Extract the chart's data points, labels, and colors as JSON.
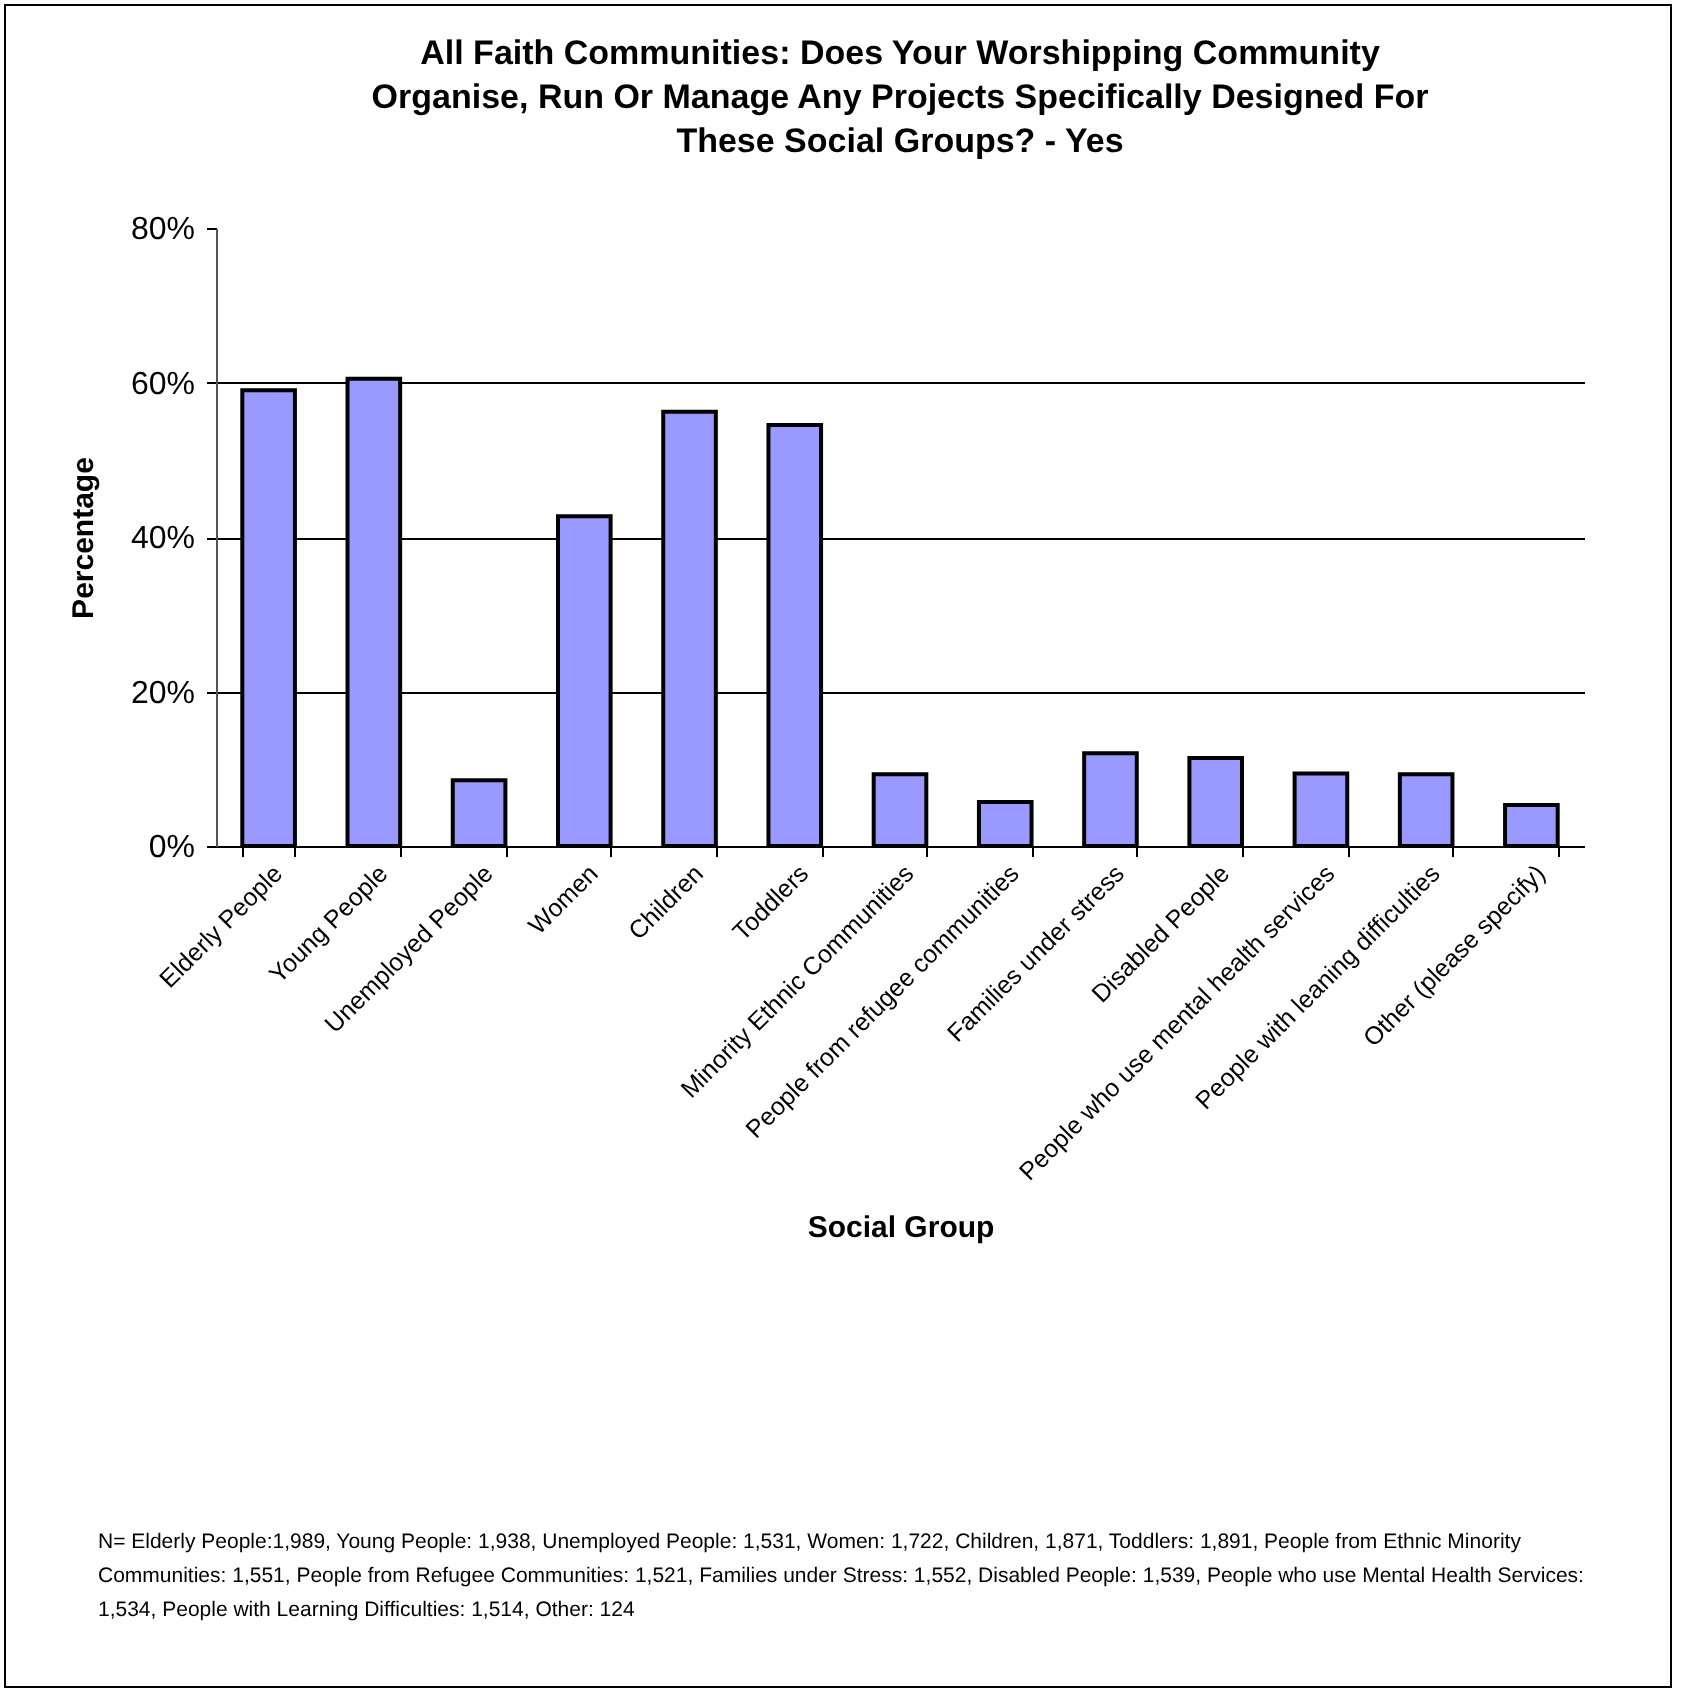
{
  "chart_data": {
    "type": "bar",
    "title": "All Faith Communities: Does Your Worshipping Community Organise, Run Or Manage Any Projects Specifically Designed For These Social Groups? - Yes",
    "xlabel": "Social Group",
    "ylabel": "Percentage",
    "categories": [
      "Elderly People",
      "Young People",
      "Unemployed People",
      "Women",
      "Children",
      "Toddlers",
      "Minority Ethnic Communities",
      "People from refugee communities",
      "Families under stress",
      "Disabled People",
      "People who use mental health services",
      "People with leaning difficulties",
      "Other (please specify)"
    ],
    "values": [
      59.0,
      60.5,
      8.5,
      42.7,
      56.2,
      54.5,
      9.3,
      5.7,
      12.0,
      11.4,
      9.4,
      9.3,
      5.3
    ],
    "color": "#9999ff",
    "ylim": [
      0,
      80
    ],
    "yticks": [
      {
        "value": 0,
        "label": "0%"
      },
      {
        "value": 20,
        "label": "20%"
      },
      {
        "value": 40,
        "label": "40%"
      },
      {
        "value": 60,
        "label": "60%"
      },
      {
        "value": 80,
        "label": "80%"
      }
    ],
    "grid": "y",
    "annotations": [
      "N= Elderly People:1,989, Young People: 1,938, Unemployed People: 1,531, Women: 1,722, Children, 1,871, Toddlers: 1,891, People from Ethnic Minority Communities: 1,551, People from Refugee Communities: 1,521, Families under Stress: 1,552, Disabled People: 1,539, People who use Mental Health Services: 1,534, People with Learning Difficulties: 1,514, Other: 124"
    ]
  }
}
